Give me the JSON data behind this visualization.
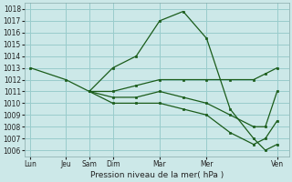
{
  "background_color": "#cce8e8",
  "grid_color": "#99cccc",
  "line_color": "#1a5c1a",
  "title": "Pression niveau de la mer( hPa )",
  "ylim": [
    1005.5,
    1018.5
  ],
  "yticks": [
    1006,
    1007,
    1008,
    1009,
    1010,
    1011,
    1012,
    1013,
    1014,
    1015,
    1016,
    1017,
    1018
  ],
  "xtick_labels": [
    "Lun",
    "Jeu",
    "Sam",
    "Dim",
    "Mar",
    "Mer",
    "Ven"
  ],
  "xtick_positions": [
    0,
    3,
    5,
    7,
    11,
    15,
    21
  ],
  "xlim": [
    -0.5,
    22
  ],
  "lines": [
    {
      "x": [
        0,
        3,
        5,
        7,
        9,
        11,
        13,
        15,
        17,
        19,
        20,
        21
      ],
      "y": [
        1013,
        1012,
        1011,
        1013,
        1014,
        1017,
        1017.8,
        1015.5,
        1009.5,
        1007,
        1006,
        1006.5
      ]
    },
    {
      "x": [
        5,
        7,
        9,
        11,
        13,
        15,
        17,
        19,
        20,
        21
      ],
      "y": [
        1011,
        1011,
        1011.5,
        1012,
        1012,
        1012,
        1012,
        1012,
        1012.5,
        1013
      ]
    },
    {
      "x": [
        5,
        7,
        9,
        11,
        13,
        15,
        17,
        19,
        20,
        21
      ],
      "y": [
        1011,
        1010.5,
        1010.5,
        1011,
        1010.5,
        1010,
        1009,
        1008,
        1008,
        1011
      ]
    },
    {
      "x": [
        5,
        7,
        9,
        11,
        13,
        15,
        17,
        19,
        20,
        21
      ],
      "y": [
        1011,
        1010,
        1010,
        1010,
        1009.5,
        1009,
        1007.5,
        1006.5,
        1007,
        1008.5
      ]
    }
  ]
}
